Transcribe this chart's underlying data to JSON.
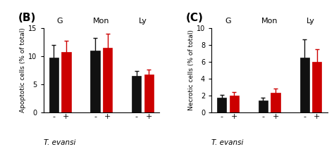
{
  "panel_B": {
    "title": "(B)",
    "ylabel": "Apoptotic cells (% of total)",
    "groups": [
      "G",
      "Mon",
      "Ly"
    ],
    "group_centers": [
      1.0,
      3.0,
      5.0
    ],
    "bar_offsets": [
      -0.3,
      0.3
    ],
    "values_black": [
      9.8,
      11.0,
      6.5
    ],
    "values_red": [
      10.8,
      11.5,
      6.7
    ],
    "errors_black": [
      2.2,
      2.2,
      0.9
    ],
    "errors_red": [
      2.0,
      2.5,
      0.9
    ],
    "ylim": [
      0,
      15
    ],
    "yticks": [
      0,
      5,
      10,
      15
    ],
    "xtick_labels": [
      "-",
      "+",
      "-",
      "+",
      "-",
      "+"
    ],
    "xlabel_text": "T. evansi",
    "color_black": "#111111",
    "color_red": "#cc0000",
    "bar_width": 0.45,
    "xlim": [
      0.2,
      5.8
    ]
  },
  "panel_C": {
    "title": "(C)",
    "ylabel": "Necrotic cells (% of total)",
    "groups": [
      "G",
      "Mon",
      "Ly"
    ],
    "group_centers": [
      1.0,
      3.0,
      5.0
    ],
    "bar_offsets": [
      -0.3,
      0.3
    ],
    "values_black": [
      1.7,
      1.4,
      6.5
    ],
    "values_red": [
      2.0,
      2.3,
      6.0
    ],
    "errors_black": [
      0.4,
      0.3,
      2.2
    ],
    "errors_red": [
      0.4,
      0.5,
      1.5
    ],
    "ylim": [
      0,
      10
    ],
    "yticks": [
      0,
      2,
      4,
      6,
      8,
      10
    ],
    "xtick_labels": [
      "-",
      "+",
      "-",
      "+",
      "-",
      "+"
    ],
    "xlabel_text": "T. evansi",
    "color_black": "#111111",
    "color_red": "#cc0000",
    "bar_width": 0.45,
    "xlim": [
      0.2,
      5.8
    ]
  }
}
